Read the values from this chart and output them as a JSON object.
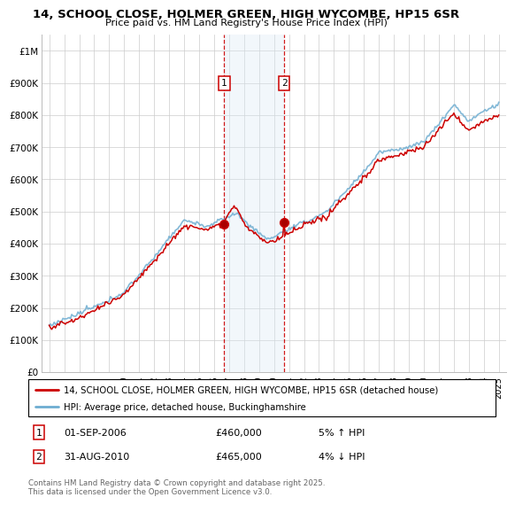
{
  "title": "14, SCHOOL CLOSE, HOLMER GREEN, HIGH WYCOMBE, HP15 6SR",
  "subtitle": "Price paid vs. HM Land Registry's House Price Index (HPI)",
  "property_label": "14, SCHOOL CLOSE, HOLMER GREEN, HIGH WYCOMBE, HP15 6SR (detached house)",
  "hpi_label": "HPI: Average price, detached house, Buckinghamshire",
  "footer": "Contains HM Land Registry data © Crown copyright and database right 2025.\nThis data is licensed under the Open Government Licence v3.0.",
  "sale1_date": "01-SEP-2006",
  "sale1_price": "£460,000",
  "sale1_hpi": "5% ↑ HPI",
  "sale2_date": "31-AUG-2010",
  "sale2_price": "£465,000",
  "sale2_hpi": "4% ↓ HPI",
  "sale1_x": 2006.67,
  "sale2_x": 2010.67,
  "sale1_y": 460000,
  "sale2_y": 465000,
  "property_color": "#cc0000",
  "hpi_color": "#6dadd1",
  "shade_color": "#daeaf5",
  "vline_color": "#cc0000",
  "ylim": [
    0,
    1050000
  ],
  "xlim": [
    1994.5,
    2025.5
  ],
  "yticks": [
    0,
    100000,
    200000,
    300000,
    400000,
    500000,
    600000,
    700000,
    800000,
    900000,
    1000000
  ],
  "ytick_labels": [
    "£0",
    "£100K",
    "£200K",
    "£300K",
    "£400K",
    "£500K",
    "£600K",
    "£700K",
    "£800K",
    "£900K",
    "£1M"
  ],
  "xticks": [
    1995,
    1996,
    1997,
    1998,
    1999,
    2000,
    2001,
    2002,
    2003,
    2004,
    2005,
    2006,
    2007,
    2008,
    2009,
    2010,
    2011,
    2012,
    2013,
    2014,
    2015,
    2016,
    2017,
    2018,
    2019,
    2020,
    2021,
    2022,
    2023,
    2024,
    2025
  ],
  "bg_color": "#ffffff",
  "grid_color": "#cccccc",
  "marker_y": 900000
}
